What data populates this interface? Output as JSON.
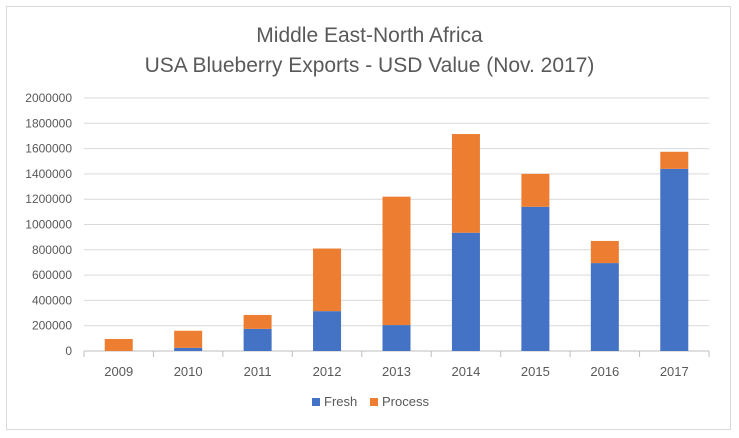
{
  "chart_data": {
    "type": "bar",
    "stacked": true,
    "title_lines": [
      "Middle East-North Africa",
      "USA Blueberry Exports - USD Value (Nov. 2017)"
    ],
    "xlabel": "",
    "ylabel": "",
    "categories": [
      "2009",
      "2010",
      "2011",
      "2012",
      "2013",
      "2014",
      "2015",
      "2016",
      "2017"
    ],
    "series": [
      {
        "name": "Fresh",
        "color": "#4472c4",
        "values": [
          0,
          25000,
          175000,
          315000,
          205000,
          935000,
          1140000,
          695000,
          1440000
        ]
      },
      {
        "name": "Process",
        "color": "#ed7d31",
        "values": [
          95000,
          135000,
          110000,
          495000,
          1015000,
          780000,
          260000,
          175000,
          135000
        ]
      }
    ],
    "ylim": [
      0,
      2000000
    ],
    "yticks": [
      "0",
      "200000",
      "400000",
      "600000",
      "800000",
      "1000000",
      "1200000",
      "1400000",
      "1600000",
      "1800000",
      "2000000"
    ],
    "grid": true,
    "legend_position": "bottom"
  }
}
